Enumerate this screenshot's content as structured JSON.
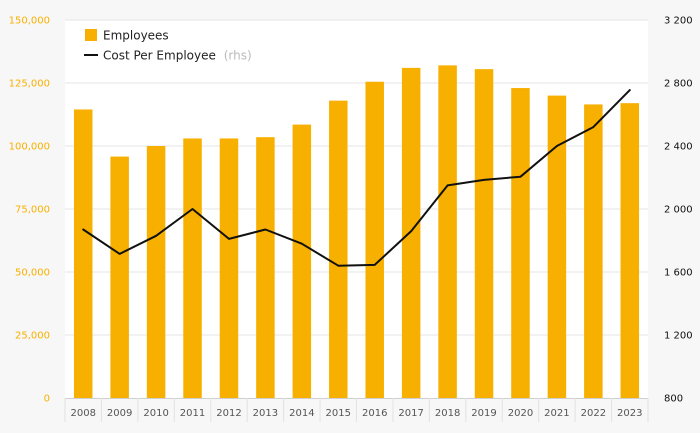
{
  "colors": {
    "bar": "#F8B000",
    "line": "#111111",
    "left_axis_text": "#F8B000",
    "right_axis_text": "#111111",
    "grid": "#e6e6e6",
    "plot_background": "#ffffff",
    "page_background": "#f7f7f7"
  },
  "legend": {
    "employees_label": "Employees",
    "cost_label": "Cost Per Employee",
    "cost_note": "(rhs)",
    "placement": "top-left"
  },
  "chart_data": {
    "type": "bar",
    "title": "",
    "xlabel": "",
    "ylabel": "",
    "grid": true,
    "legend_placement": "top-left",
    "categories": [
      "2008",
      "2009",
      "2010",
      "2011",
      "2012",
      "2013",
      "2014",
      "2015",
      "2016",
      "2017",
      "2018",
      "2019",
      "2020",
      "2021",
      "2022",
      "2023"
    ],
    "y_ticks_left": [
      "0",
      "25,000",
      "50,000",
      "75,000",
      "100,000",
      "125,000",
      "150,000"
    ],
    "y_ticks_right": [
      "800",
      "1 200",
      "1 600",
      "2 000",
      "2 400",
      "2 800",
      "3 200"
    ],
    "ylim_left": [
      0,
      150000
    ],
    "ylim_right": [
      800,
      3200
    ],
    "series": [
      {
        "name": "Employees",
        "type": "bar",
        "axis": "left",
        "values": [
          114500,
          95800,
          100000,
          103000,
          103000,
          103500,
          108500,
          118000,
          125500,
          131000,
          132000,
          130500,
          123000,
          120000,
          116500,
          117000
        ]
      },
      {
        "name": "Cost Per Employee",
        "type": "line",
        "axis": "right",
        "values": [
          1870,
          1715,
          1830,
          2000,
          1810,
          1870,
          1780,
          1640,
          1645,
          1860,
          2150,
          2185,
          2205,
          2400,
          2520,
          2755
        ]
      }
    ]
  }
}
